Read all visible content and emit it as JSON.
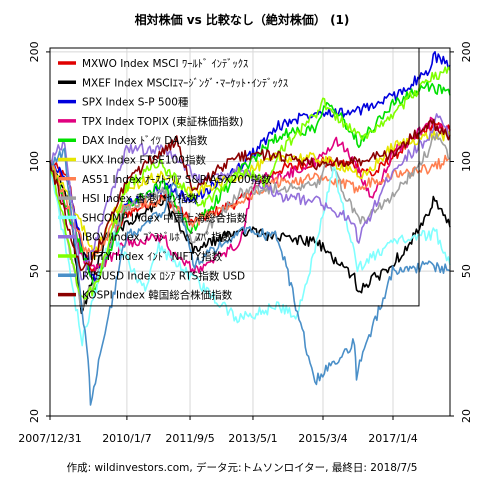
{
  "chart_data": {
    "type": "line",
    "title": "相対株価 vs 比較なし（絶対株価） (1)",
    "xlabel": "",
    "ylabel": "",
    "y_scale": "log",
    "ylim": [
      20,
      205
    ],
    "xlim": [
      "2007-12-31",
      "2018-07-05"
    ],
    "y_ticks": [
      20,
      50,
      100,
      200
    ],
    "x_ticks": [
      "2007/12/31",
      "2010/1/7",
      "2011/9/5",
      "2013/5/1",
      "2015/3/4",
      "2017/1/4"
    ],
    "grid": true,
    "legend_position": "top-left",
    "footer": "作成: wildinvestors.com, データ元:トムソンロイター, 最終日: 2018/7/5",
    "series": [
      {
        "name": "MXWO Index MSCI ﾜｰﾙﾄﾞ ｲﾝﾃﾞｯｸｽ",
        "color": "#e00000",
        "x": [
          "2007-12-31",
          "2008-06-30",
          "2008-10-15",
          "2009-03-09",
          "2009-12-31",
          "2010-12-31",
          "2011-09-30",
          "2012-12-31",
          "2013-12-31",
          "2014-12-31",
          "2015-12-31",
          "2016-06-30",
          "2016-12-31",
          "2017-12-31",
          "2018-07-05"
        ],
        "y": [
          100,
          88,
          60,
          48,
          72,
          80,
          68,
          78,
          95,
          100,
          98,
          92,
          103,
          125,
          122
        ]
      },
      {
        "name": "MXEF Index MSCIｴﾏｰｼﾞﾝｸﾞ･ﾏｰｹｯﾄ･ｲﾝﾃﾞｯｸｽ",
        "color": "#000000",
        "x": [
          "2007-12-31",
          "2008-06-30",
          "2008-10-27",
          "2009-06-30",
          "2010-12-31",
          "2011-10-04",
          "2012-12-31",
          "2013-12-31",
          "2014-12-31",
          "2015-12-31",
          "2016-01-21",
          "2016-12-31",
          "2017-12-31",
          "2018-01-26",
          "2018-07-05"
        ],
        "y": [
          100,
          80,
          38,
          62,
          78,
          57,
          65,
          62,
          60,
          48,
          44,
          52,
          72,
          79,
          66
        ]
      },
      {
        "name": "SPX Index S-P 500種",
        "color": "#0000dd",
        "x": [
          "2007-12-31",
          "2008-06-30",
          "2008-11-20",
          "2009-03-09",
          "2009-12-31",
          "2010-12-31",
          "2011-09-30",
          "2012-12-31",
          "2013-12-31",
          "2014-12-31",
          "2015-12-31",
          "2016-12-31",
          "2017-12-31",
          "2018-01-26",
          "2018-07-05"
        ],
        "y": [
          100,
          88,
          55,
          46,
          76,
          85,
          78,
          97,
          125,
          138,
          136,
          150,
          178,
          195,
          184
        ]
      },
      {
        "name": "TPX Index TOPIX (東証株価指数)",
        "color": "#e0007f",
        "x": [
          "2007-12-31",
          "2008-10-28",
          "2009-03-10",
          "2009-12-31",
          "2010-12-31",
          "2011-03-15",
          "2011-11-30",
          "2012-12-31",
          "2013-05-22",
          "2013-12-31",
          "2014-12-31",
          "2015-08-10",
          "2016-06-24",
          "2016-12-31",
          "2017-12-31",
          "2018-07-05"
        ],
        "y": [
          100,
          55,
          50,
          60,
          62,
          55,
          50,
          60,
          90,
          90,
          100,
          115,
          80,
          105,
          128,
          122
        ]
      },
      {
        "name": "DAX Index ﾄﾞｲﾂ DAX指数",
        "color": "#00e000",
        "x": [
          "2007-12-31",
          "2008-11-21",
          "2009-03-09",
          "2009-12-31",
          "2010-12-31",
          "2011-09-12",
          "2012-12-31",
          "2013-12-31",
          "2014-12-31",
          "2015-04-10",
          "2016-02-11",
          "2016-12-31",
          "2017-12-31",
          "2018-07-05"
        ],
        "y": [
          100,
          55,
          45,
          75,
          87,
          64,
          94,
          118,
          124,
          150,
          113,
          144,
          162,
          152
        ]
      },
      {
        "name": "UKX Index FTSE100指数",
        "color": "#e6e600",
        "x": [
          "2007-12-31",
          "2008-11-21",
          "2009-03-03",
          "2009-12-31",
          "2010-12-31",
          "2011-09-30",
          "2012-12-31",
          "2013-12-31",
          "2014-12-31",
          "2015-12-31",
          "2016-02-11",
          "2016-12-31",
          "2017-12-31",
          "2018-07-05"
        ],
        "y": [
          100,
          65,
          55,
          85,
          92,
          82,
          92,
          103,
          102,
          95,
          88,
          110,
          118,
          118
        ]
      },
      {
        "name": "AS51 Index ｵｰｽﾄﾗﾘｱ S&P/ASX200指数",
        "color": "#ff7f50",
        "x": [
          "2007-12-31",
          "2008-11-21",
          "2009-03-06",
          "2009-12-31",
          "2010-12-31",
          "2011-09-30",
          "2012-12-31",
          "2013-12-31",
          "2014-12-31",
          "2015-12-31",
          "2016-12-31",
          "2017-12-31",
          "2018-07-05"
        ],
        "y": [
          100,
          58,
          55,
          76,
          78,
          68,
          78,
          88,
          90,
          85,
          92,
          96,
          102
        ]
      },
      {
        "name": "HSI Index 香港ﾊﾝｾﾝ指数",
        "color": "#a0a0a0",
        "x": [
          "2007-12-31",
          "2008-10-27",
          "2009-03-09",
          "2009-12-31",
          "2010-12-31",
          "2011-10-04",
          "2012-12-31",
          "2013-12-31",
          "2014-12-31",
          "2015-04-28",
          "2016-02-12",
          "2016-12-31",
          "2017-12-31",
          "2018-01-26",
          "2018-07-05"
        ],
        "y": [
          100,
          40,
          47,
          75,
          83,
          60,
          82,
          85,
          85,
          100,
          68,
          80,
          108,
          120,
          102
        ]
      },
      {
        "name": "SHCOMP Index 中国上海総合指数",
        "color": "#80ffff",
        "x": [
          "2007-12-31",
          "2008-11-04",
          "2009-08-04",
          "2010-07-02",
          "2010-11-08",
          "2012-12-03",
          "2013-12-31",
          "2014-06-30",
          "2014-12-31",
          "2015-06-12",
          "2016-01-28",
          "2016-12-31",
          "2017-12-31",
          "2018-01-26",
          "2018-07-05"
        ],
        "y": [
          100,
          32,
          64,
          44,
          58,
          37,
          40,
          38,
          59,
          97,
          51,
          60,
          63,
          66,
          52
        ]
      },
      {
        "name": "IBOV Index ﾌﾞﾗｼﾞﾙﾎﾞﾍﾞｽﾊﾟ指数",
        "color": "#9370db",
        "x": [
          "2007-12-31",
          "2008-05-20",
          "2008-10-27",
          "2009-12-31",
          "2010-12-31",
          "2011-12-31",
          "2012-12-31",
          "2013-12-31",
          "2014-12-31",
          "2015-12-31",
          "2016-01-26",
          "2016-12-31",
          "2017-12-31",
          "2018-02-26",
          "2018-07-05"
        ],
        "y": [
          100,
          115,
          47,
          108,
          108,
          88,
          95,
          80,
          78,
          68,
          60,
          95,
          118,
          135,
          116
        ]
      },
      {
        "name": "NIFTY Index ｲﾝﾄﾞ NIFTY指数",
        "color": "#7fff00",
        "x": [
          "2007-12-31",
          "2008-10-27",
          "2009-03-09",
          "2009-12-31",
          "2010-11-05",
          "2011-12-20",
          "2012-12-31",
          "2013-08-28",
          "2013-12-31",
          "2014-12-31",
          "2015-03-03",
          "2016-02-29",
          "2016-12-31",
          "2017-12-31",
          "2018-07-05"
        ],
        "y": [
          100,
          42,
          45,
          85,
          100,
          75,
          95,
          88,
          105,
          135,
          145,
          115,
          135,
          170,
          178
        ]
      },
      {
        "name": "RTSUSD Index ﾛｼｱ RTS指数 USD",
        "color": "#4a8fc8",
        "x": [
          "2007-12-31",
          "2008-05-19",
          "2008-12-31",
          "2009-01-23",
          "2009-12-31",
          "2010-12-31",
          "2011-04-08",
          "2011-10-04",
          "2012-12-31",
          "2013-12-31",
          "2014-12-16",
          "2015-12-31",
          "2016-01-20",
          "2016-12-31",
          "2017-12-31",
          "2018-07-05"
        ],
        "y": [
          100,
          105,
          28,
          22,
          62,
          73,
          88,
          52,
          65,
          62,
          25,
          32,
          26,
          50,
          52,
          50
        ]
      },
      {
        "name": "KOSPI Index 韓国総合株価指数",
        "color": "#8b0000",
        "x": [
          "2007-12-31",
          "2008-10-24",
          "2009-03-03",
          "2009-12-31",
          "2010-12-31",
          "2011-04-30",
          "2011-09-26",
          "2012-12-31",
          "2013-12-31",
          "2014-12-31",
          "2015-12-31",
          "2016-12-31",
          "2017-12-31",
          "2018-07-05"
        ],
        "y": [
          100,
          50,
          55,
          88,
          108,
          115,
          85,
          104,
          104,
          98,
          100,
          105,
          128,
          118
        ]
      }
    ]
  }
}
